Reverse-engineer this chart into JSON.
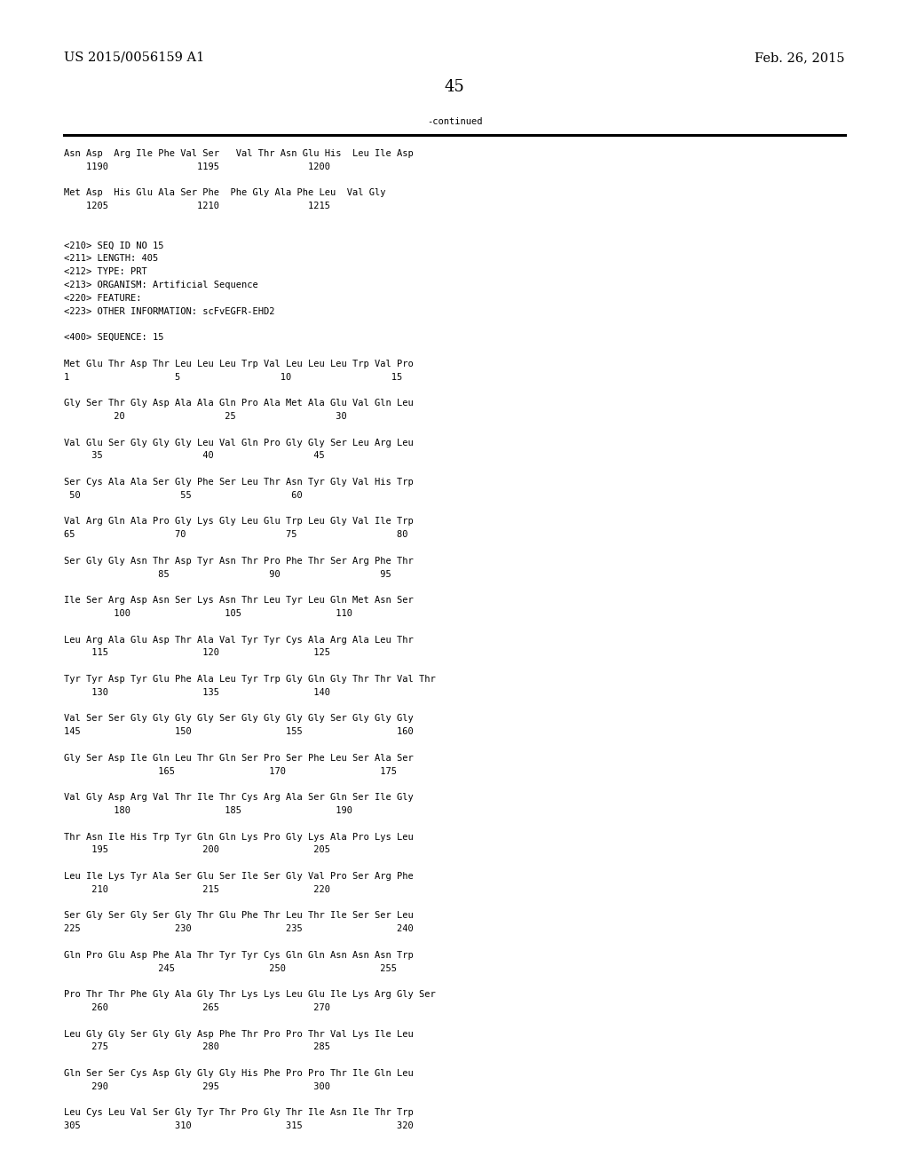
{
  "header_left": "US 2015/0056159 A1",
  "header_right": "Feb. 26, 2015",
  "page_number": "45",
  "continued_label": "-continued",
  "background_color": "#ffffff",
  "text_color": "#000000",
  "font_size": 7.5,
  "mono_font": "DejaVu Sans Mono",
  "header_font_size": 10.5,
  "page_num_font_size": 13,
  "lines": [
    "Asn Asp  Arg Ile Phe Val Ser   Val Thr Asn Glu His  Leu Ile Asp",
    "    1190                1195                1200",
    "",
    "Met Asp  His Glu Ala Ser Phe  Phe Gly Ala Phe Leu  Val Gly",
    "    1205                1210                1215",
    "",
    "",
    "<210> SEQ ID NO 15",
    "<211> LENGTH: 405",
    "<212> TYPE: PRT",
    "<213> ORGANISM: Artificial Sequence",
    "<220> FEATURE:",
    "<223> OTHER INFORMATION: scFvEGFR-EHD2",
    "",
    "<400> SEQUENCE: 15",
    "",
    "Met Glu Thr Asp Thr Leu Leu Leu Trp Val Leu Leu Leu Trp Val Pro",
    "1                   5                  10                  15",
    "",
    "Gly Ser Thr Gly Asp Ala Ala Gln Pro Ala Met Ala Glu Val Gln Leu",
    "         20                  25                  30",
    "",
    "Val Glu Ser Gly Gly Gly Leu Val Gln Pro Gly Gly Ser Leu Arg Leu",
    "     35                  40                  45",
    "",
    "Ser Cys Ala Ala Ser Gly Phe Ser Leu Thr Asn Tyr Gly Val His Trp",
    " 50                  55                  60",
    "",
    "Val Arg Gln Ala Pro Gly Lys Gly Leu Glu Trp Leu Gly Val Ile Trp",
    "65                  70                  75                  80",
    "",
    "Ser Gly Gly Asn Thr Asp Tyr Asn Thr Pro Phe Thr Ser Arg Phe Thr",
    "                 85                  90                  95",
    "",
    "Ile Ser Arg Asp Asn Ser Lys Asn Thr Leu Tyr Leu Gln Met Asn Ser",
    "         100                 105                 110",
    "",
    "Leu Arg Ala Glu Asp Thr Ala Val Tyr Tyr Cys Ala Arg Ala Leu Thr",
    "     115                 120                 125",
    "",
    "Tyr Tyr Asp Tyr Glu Phe Ala Leu Tyr Trp Gly Gln Gly Thr Thr Val Thr",
    "     130                 135                 140",
    "",
    "Val Ser Ser Gly Gly Gly Gly Ser Gly Gly Gly Gly Ser Gly Gly Gly",
    "145                 150                 155                 160",
    "",
    "Gly Ser Asp Ile Gln Leu Thr Gln Ser Pro Ser Phe Leu Ser Ala Ser",
    "                 165                 170                 175",
    "",
    "Val Gly Asp Arg Val Thr Ile Thr Cys Arg Ala Ser Gln Ser Ile Gly",
    "         180                 185                 190",
    "",
    "Thr Asn Ile His Trp Tyr Gln Gln Lys Pro Gly Lys Ala Pro Lys Leu",
    "     195                 200                 205",
    "",
    "Leu Ile Lys Tyr Ala Ser Glu Ser Ile Ser Gly Val Pro Ser Arg Phe",
    "     210                 215                 220",
    "",
    "Ser Gly Ser Gly Ser Gly Thr Glu Phe Thr Leu Thr Ile Ser Ser Leu",
    "225                 230                 235                 240",
    "",
    "Gln Pro Glu Asp Phe Ala Thr Tyr Tyr Cys Gln Gln Asn Asn Asn Trp",
    "                 245                 250                 255",
    "",
    "Pro Thr Thr Phe Gly Ala Gly Thr Lys Lys Leu Glu Ile Lys Arg Gly Ser",
    "     260                 265                 270",
    "",
    "Leu Gly Gly Ser Gly Gly Asp Phe Thr Pro Pro Thr Val Lys Ile Leu",
    "     275                 280                 285",
    "",
    "Gln Ser Ser Cys Asp Gly Gly Gly His Phe Pro Pro Thr Ile Gln Leu",
    "     290                 295                 300",
    "",
    "Leu Cys Leu Val Ser Gly Tyr Thr Pro Gly Thr Ile Asn Ile Thr Trp",
    "305                 310                 315                 320"
  ]
}
